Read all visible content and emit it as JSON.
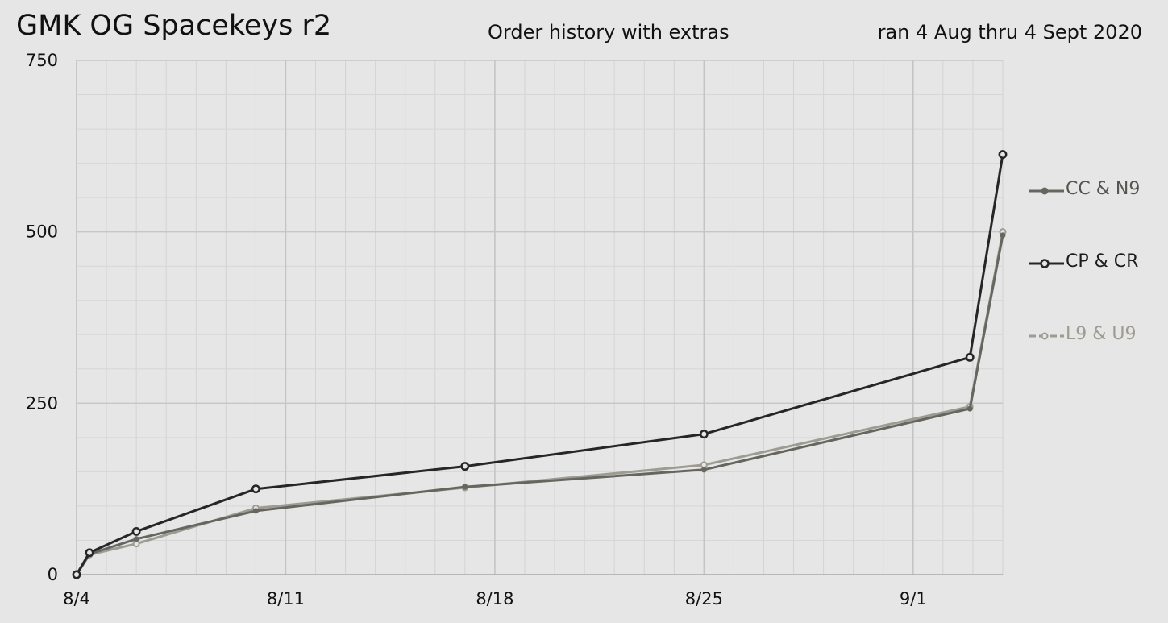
{
  "title": "GMK OG Spacekeys r2",
  "subtitle": "Order history with extras",
  "date_range": "ran 4 Aug thru 4 Sept 2020",
  "chart_data": {
    "type": "line",
    "title": "GMK OG Spacekeys r2",
    "subtitle": "Order history with extras",
    "xlabel": "",
    "ylabel": "",
    "x_ticks": [
      "8/4",
      "8/11",
      "8/18",
      "8/25",
      "9/1"
    ],
    "y_ticks": [
      "0",
      "250",
      "500",
      "750"
    ],
    "ylim": [
      0,
      750
    ],
    "grid": true,
    "legend_position": "right",
    "series": [
      {
        "name": "CC & N9",
        "color": "#666660",
        "marker": "filled-dot",
        "points": [
          {
            "x": "2020-08-04",
            "y": 0
          },
          {
            "x": "2020-08-04",
            "y": 30
          },
          {
            "x": "2020-08-06",
            "y": 52
          },
          {
            "x": "2020-08-10",
            "y": 93
          },
          {
            "x": "2020-08-17",
            "y": 128
          },
          {
            "x": "2020-08-25",
            "y": 153
          },
          {
            "x": "2020-09-03",
            "y": 242
          },
          {
            "x": "2020-09-04",
            "y": 495
          }
        ]
      },
      {
        "name": "CP & CR",
        "color": "#262626",
        "marker": "hollow-circle",
        "points": [
          {
            "x": "2020-08-04",
            "y": 0
          },
          {
            "x": "2020-08-04",
            "y": 32
          },
          {
            "x": "2020-08-06",
            "y": 63
          },
          {
            "x": "2020-08-10",
            "y": 125
          },
          {
            "x": "2020-08-17",
            "y": 158
          },
          {
            "x": "2020-08-25",
            "y": 205
          },
          {
            "x": "2020-09-03",
            "y": 317
          },
          {
            "x": "2020-09-04",
            "y": 613
          }
        ]
      },
      {
        "name": "L9 & U9",
        "color": "#9e9b92",
        "marker": "hollow-circle-light",
        "points": [
          {
            "x": "2020-08-04",
            "y": 0
          },
          {
            "x": "2020-08-04",
            "y": 29
          },
          {
            "x": "2020-08-06",
            "y": 45
          },
          {
            "x": "2020-08-10",
            "y": 97
          },
          {
            "x": "2020-08-17",
            "y": 127
          },
          {
            "x": "2020-08-25",
            "y": 160
          },
          {
            "x": "2020-09-03",
            "y": 245
          },
          {
            "x": "2020-09-04",
            "y": 500
          }
        ]
      }
    ]
  }
}
